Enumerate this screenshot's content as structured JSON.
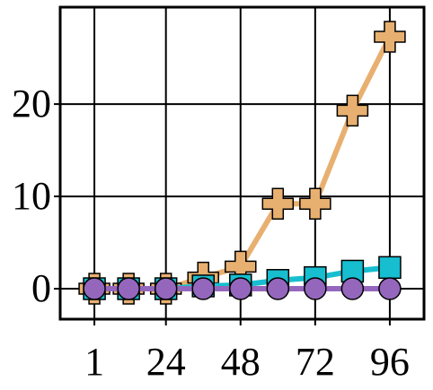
{
  "chart_data": {
    "type": "line",
    "x": [
      1,
      12,
      24,
      36,
      48,
      60,
      72,
      84,
      96
    ],
    "series": [
      {
        "color": "#e8b070",
        "marker": "plus",
        "values": [
          0,
          0,
          0,
          1.2,
          2.4,
          9.2,
          9.2,
          19.3,
          27.3
        ]
      },
      {
        "color": "#17becf",
        "marker": "square",
        "values": [
          0,
          0,
          0,
          0.3,
          0.4,
          0.9,
          1.2,
          1.9,
          2.3
        ]
      },
      {
        "color": "#9467bd",
        "marker": "circle",
        "values": [
          0,
          0,
          0,
          0,
          0,
          0,
          0,
          0,
          0
        ]
      }
    ],
    "xlim": [
      -10,
      107
    ],
    "ylim": [
      -3.3,
      30.5
    ],
    "xticks": [
      1,
      24,
      48,
      72,
      96
    ],
    "yticks": [
      0,
      10,
      20
    ],
    "grid": true
  }
}
